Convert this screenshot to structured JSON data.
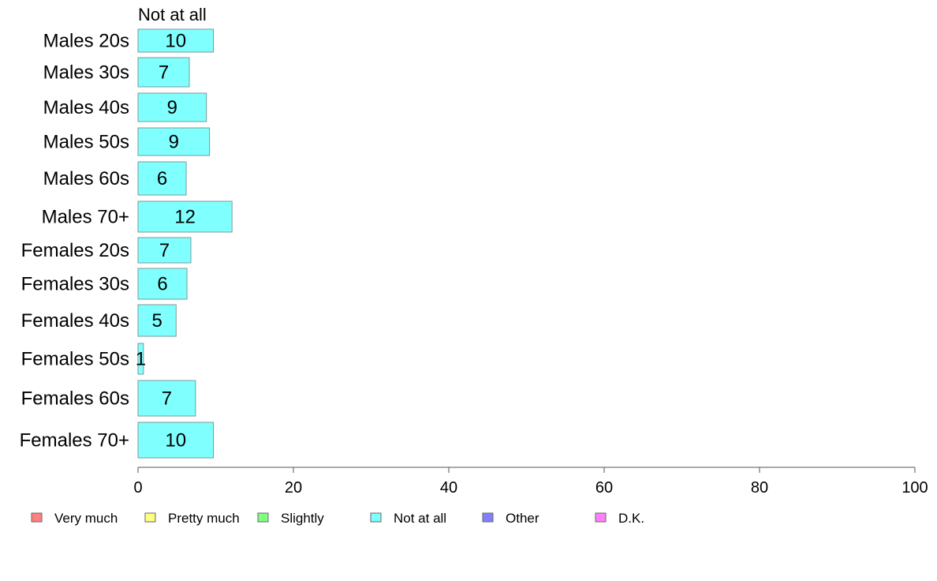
{
  "chart_data": {
    "type": "bar",
    "orientation": "horizontal",
    "series_label": "Not at all",
    "categories": [
      "Males 20s",
      "Males 30s",
      "Males 40s",
      "Males 50s",
      "Males 60s",
      "Males 70+",
      "Females 20s",
      "Females 30s",
      "Females 40s",
      "Females 50s",
      "Females 60s",
      "Females 70+"
    ],
    "series": [
      {
        "name": "Not at all",
        "values": [
          9.7,
          6.6,
          8.8,
          9.2,
          6.2,
          12.1,
          6.8,
          6.3,
          4.9,
          0.7,
          7.4,
          9.7
        ],
        "labels": [
          "10",
          "7",
          "9",
          "9",
          "6",
          "12",
          "7",
          "6",
          "5",
          "1",
          "7",
          "10"
        ],
        "color": "#80ffff"
      }
    ],
    "xlim": [
      0,
      100
    ],
    "xticks": [
      "0",
      "20",
      "40",
      "60",
      "80",
      "100"
    ],
    "legend_position": "bottom",
    "legend": [
      {
        "label": "Very much",
        "color": "#ff8080"
      },
      {
        "label": "Pretty much",
        "color": "#ffff80"
      },
      {
        "label": "Slightly",
        "color": "#80ff80"
      },
      {
        "label": "Not at all",
        "color": "#80ffff"
      },
      {
        "label": "Other",
        "color": "#8080ff"
      },
      {
        "label": "D.K.",
        "color": "#ff80ff"
      }
    ]
  }
}
